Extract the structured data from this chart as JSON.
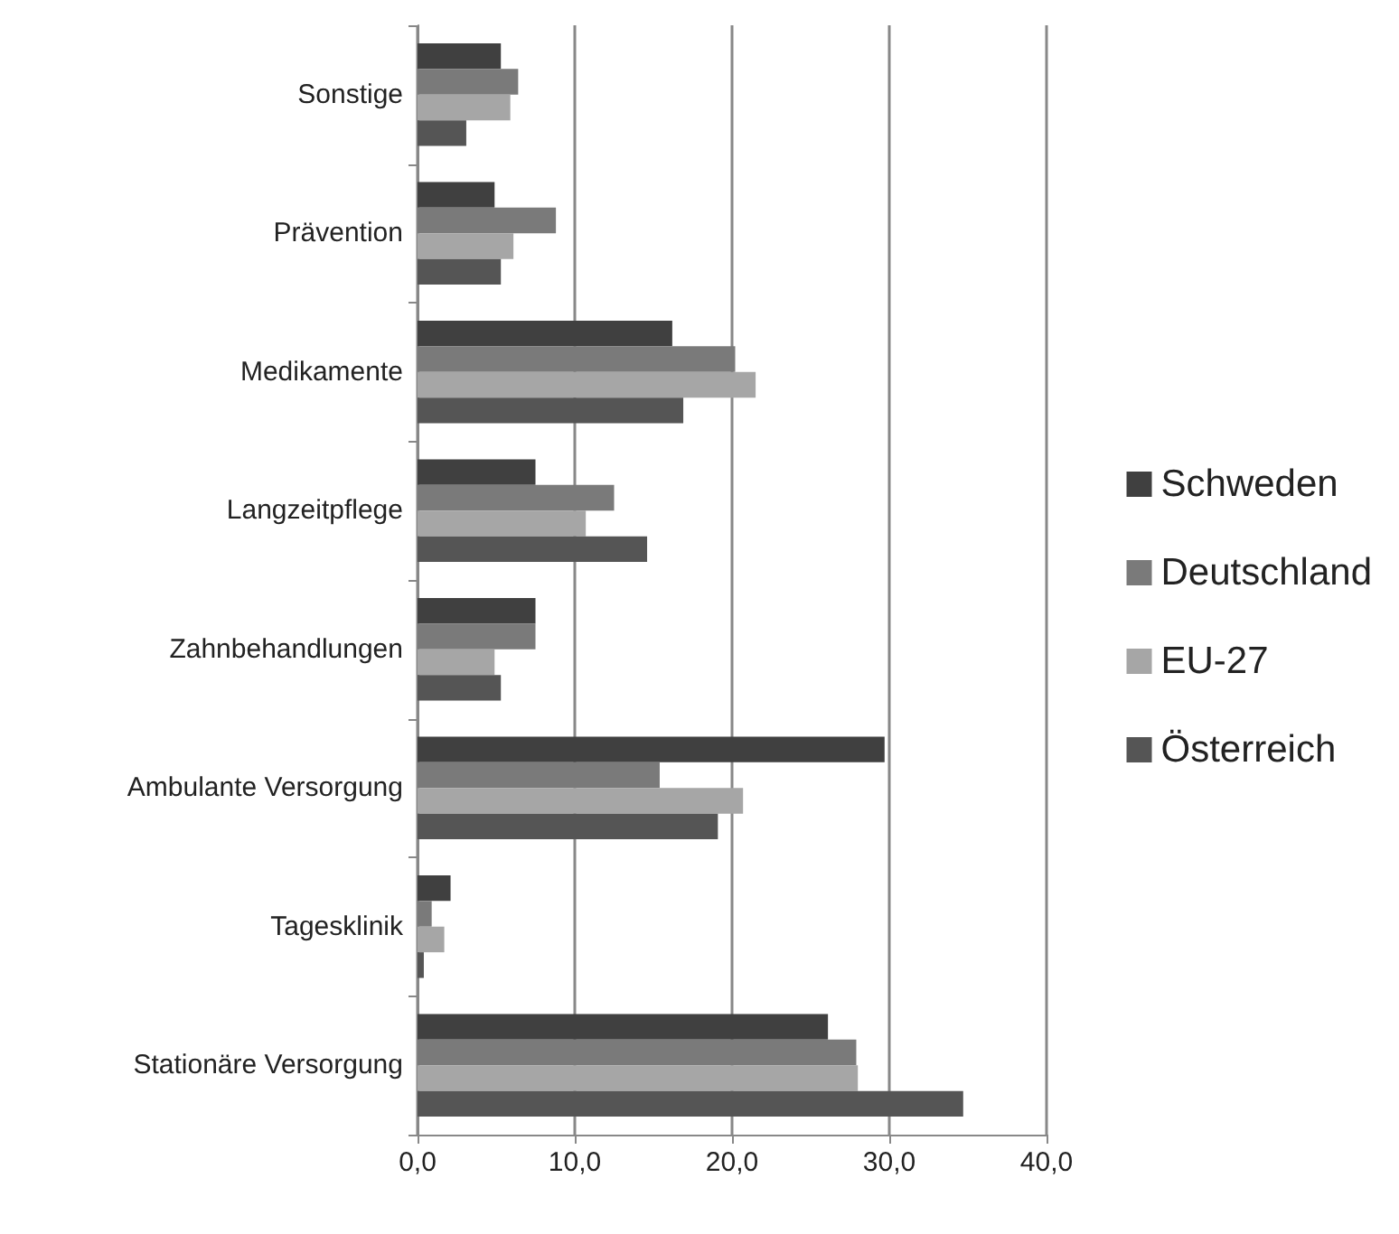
{
  "chart_data": {
    "type": "bar",
    "orientation": "horizontal",
    "categories": [
      "Sonstige",
      "Prävention",
      "Medikamente",
      "Langzeitpflege",
      "Zahnbehandlungen",
      "Ambulante Versorgung",
      "Tagesklinik",
      "Stationäre Versorgung"
    ],
    "series": [
      {
        "name": "Schweden",
        "color": "#404040",
        "values": [
          5.3,
          4.9,
          16.2,
          7.5,
          7.5,
          29.7,
          2.1,
          26.1
        ]
      },
      {
        "name": "Deutschland",
        "color": "#7a7a7a",
        "values": [
          6.4,
          8.8,
          20.2,
          12.5,
          7.5,
          15.4,
          0.9,
          27.9
        ]
      },
      {
        "name": "EU-27",
        "color": "#a6a6a6",
        "values": [
          5.9,
          6.1,
          21.5,
          10.7,
          4.9,
          20.7,
          1.7,
          28.0
        ]
      },
      {
        "name": "Österreich",
        "color": "#555555",
        "values": [
          3.1,
          5.3,
          16.9,
          14.6,
          5.3,
          19.1,
          0.4,
          34.7
        ]
      }
    ],
    "xlim": [
      0,
      40
    ],
    "xticks": [
      {
        "value": 0,
        "label": "0,0"
      },
      {
        "value": 10,
        "label": "10,0"
      },
      {
        "value": 20,
        "label": "20,0"
      },
      {
        "value": 30,
        "label": "30,0"
      },
      {
        "value": 40,
        "label": "40,0"
      }
    ],
    "grid": "x",
    "legend": "right"
  }
}
